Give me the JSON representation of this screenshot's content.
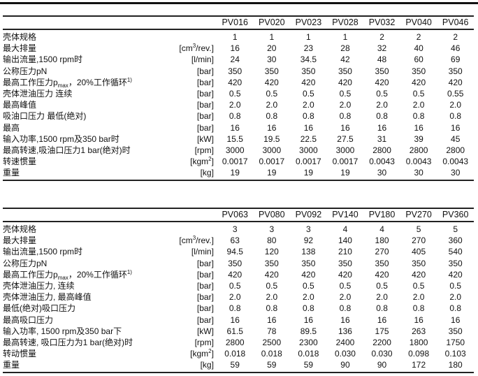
{
  "tables": [
    {
      "models": [
        "PV016",
        "PV020",
        "PV023",
        "PV028",
        "PV032",
        "PV040",
        "PV046"
      ],
      "rows": [
        {
          "label": "壳体规格",
          "unit": "",
          "values": [
            "1",
            "1",
            "1",
            "1",
            "2",
            "2",
            "2"
          ]
        },
        {
          "label": "最大排量",
          "unit": "[cm",
          "unit_sup": "3",
          "unit_post": "/rev.]",
          "values": [
            "16",
            "20",
            "23",
            "28",
            "32",
            "40",
            "46"
          ]
        },
        {
          "label": "输出流量,1500 rpm时",
          "unit": "[l/min]",
          "values": [
            "24",
            "30",
            "34.5",
            "42",
            "48",
            "60",
            "69"
          ]
        },
        {
          "label": "公称压力pN",
          "unit": "[bar]",
          "values": [
            "350",
            "350",
            "350",
            "350",
            "350",
            "350",
            "350"
          ]
        },
        {
          "label": "最高工作压力p",
          "label_sub": "max",
          "label_post": "，20%工作循环",
          "label_sup": "1)",
          "unit": "[bar]",
          "values": [
            "420",
            "420",
            "420",
            "420",
            "420",
            "420",
            "420"
          ]
        },
        {
          "label": "壳体泄油压力  连续",
          "unit": "[bar]",
          "values": [
            "0.5",
            "0.5",
            "0.5",
            "0.5",
            "0.5",
            "0.5",
            "0.55"
          ]
        },
        {
          "label": "最高峰值",
          "unit": "[bar]",
          "values": [
            "2.0",
            "2.0",
            "2.0",
            "2.0",
            "2.0",
            "2.0",
            "2.0"
          ]
        },
        {
          "label": "吸油口压力 最低(绝对)",
          "unit": "[bar]",
          "values": [
            "0.8",
            "0.8",
            "0.8",
            "0.8",
            "0.8",
            "0.8",
            "0.8"
          ]
        },
        {
          "label": "最高",
          "unit": "[bar]",
          "values": [
            "16",
            "16",
            "16",
            "16",
            "16",
            "16",
            "16"
          ]
        },
        {
          "label": "输入功率,1500 rpm及350 bar时",
          "unit": "[kW]",
          "values": [
            "15.5",
            "19.5",
            "22.5",
            "27.5",
            "31",
            "39",
            "45"
          ]
        },
        {
          "label": "最高转速,吸油口压力1 bar(绝对)时",
          "unit": "[rpm]",
          "values": [
            "3000",
            "3000",
            "3000",
            "3000",
            "2800",
            "2800",
            "2800"
          ]
        },
        {
          "label": "转速惯量",
          "unit": "[kgm",
          "unit_sup": "2",
          "unit_post": "]",
          "values": [
            "0.0017",
            "0.0017",
            "0.0017",
            "0.0017",
            "0.0043",
            "0.0043",
            "0.0043"
          ]
        },
        {
          "label": "重量",
          "unit": "[kg]",
          "values": [
            "19",
            "19",
            "19",
            "19",
            "30",
            "30",
            "30"
          ]
        }
      ]
    },
    {
      "models": [
        "PV063",
        "PV080",
        "PV092",
        "PV140",
        "PV180",
        "PV270",
        "PV360"
      ],
      "rows": [
        {
          "label": "壳体规格",
          "unit": "",
          "values": [
            "3",
            "3",
            "3",
            "4",
            "4",
            "5",
            "5"
          ]
        },
        {
          "label": "最大排量",
          "unit": "[cm",
          "unit_sup": "3",
          "unit_post": "/rev.]",
          "values": [
            "63",
            "80",
            "92",
            "140",
            "180",
            "270",
            "360"
          ]
        },
        {
          "label": "输出流量,1500 rpm时",
          "unit": "[l/min]",
          "values": [
            "94.5",
            "120",
            "138",
            "210",
            "270",
            "405",
            "540"
          ]
        },
        {
          "label": "公称压力pN",
          "unit": "[bar]",
          "values": [
            "350",
            "350",
            "350",
            "350",
            "350",
            "350",
            "350"
          ]
        },
        {
          "label": "最高工作压力p",
          "label_sub": "max",
          "label_post": "，20%工作循环",
          "label_sup": "1)",
          "unit": "[bar]",
          "values": [
            "420",
            "420",
            "420",
            "420",
            "420",
            "420",
            "420"
          ]
        },
        {
          "label": "壳体泄油压力, 连续",
          "unit": "[bar]",
          "values": [
            "0.5",
            "0.5",
            "0.5",
            "0.5",
            "0.5",
            "0.5",
            "0.5"
          ]
        },
        {
          "label": "壳体泄油压力, 最高峰值",
          "unit": "[bar]",
          "values": [
            "2.0",
            "2.0",
            "2.0",
            "2.0",
            "2.0",
            "2.0",
            "2.0"
          ]
        },
        {
          "label": "最低(绝对)吸口压力",
          "unit": "[bar]",
          "values": [
            "0.8",
            "0.8",
            "0.8",
            "0.8",
            "0.8",
            "0.8",
            "0.8"
          ]
        },
        {
          "label": "最高吸口压力",
          "unit": "[bar]",
          "values": [
            "16",
            "16",
            "16",
            "16",
            "16",
            "16",
            "16"
          ]
        },
        {
          "label": "输入功率, 1500 rpm及350 bar下",
          "unit": "[kW]",
          "values": [
            "61.5",
            "78",
            "89.5",
            "136",
            "175",
            "263",
            "350"
          ]
        },
        {
          "label": "最高转速, 吸口压力为1 bar(绝对)时",
          "unit": "[rpm]",
          "values": [
            "2800",
            "2500",
            "2300",
            "2400",
            "2200",
            "1800",
            "1750"
          ]
        },
        {
          "label": "转动惯量",
          "unit": "[kgm",
          "unit_sup": "2",
          "unit_post": "]",
          "values": [
            "0.018",
            "0.018",
            "0.018",
            "0.030",
            "0.030",
            "0.098",
            "0.103"
          ]
        },
        {
          "label": "重量",
          "unit": "[kg]",
          "values": [
            "59",
            "59",
            "59",
            "90",
            "90",
            "172",
            "180"
          ]
        }
      ]
    }
  ]
}
